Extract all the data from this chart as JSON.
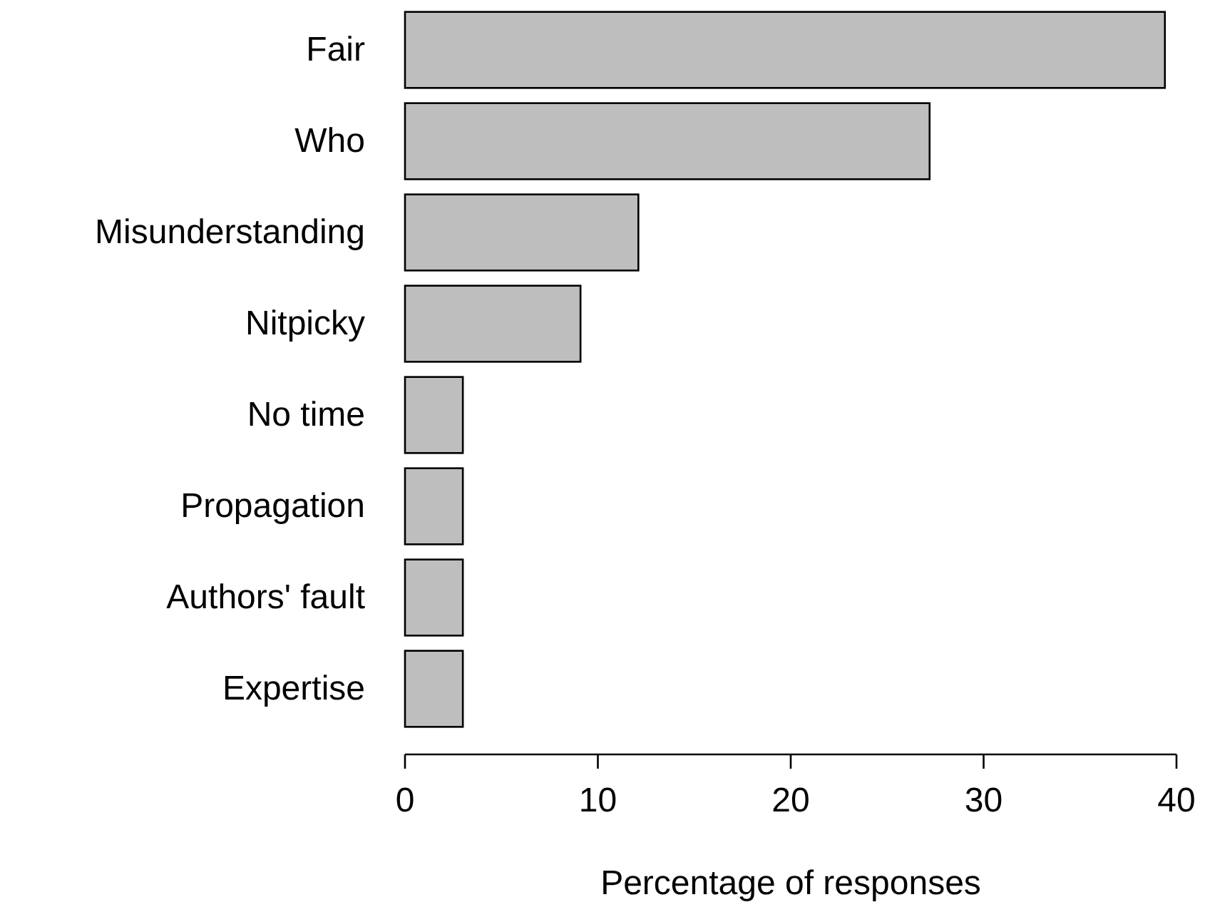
{
  "chart_data": {
    "type": "bar",
    "orientation": "horizontal",
    "xlabel": "Percentage of responses",
    "categories": [
      "Fair",
      "Who",
      "Misunderstanding",
      "Nitpicky",
      "No time",
      "Propagation",
      "Authors' fault",
      "Expertise"
    ],
    "values": [
      39.4,
      27.2,
      12.1,
      9.1,
      3.0,
      3.0,
      3.0,
      3.0
    ],
    "color": "#bebebe",
    "xlim": [
      0,
      40
    ],
    "xticks": [
      0,
      10,
      20,
      30,
      40
    ],
    "grid": false
  }
}
